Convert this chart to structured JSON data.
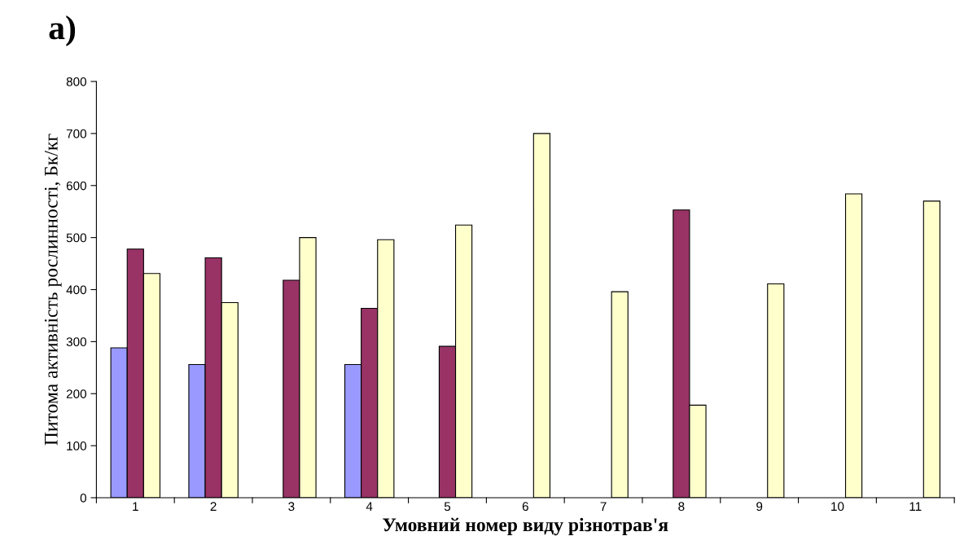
{
  "chart_data": {
    "type": "bar",
    "title": "а)",
    "xlabel": "Умовний номер виду різнотрав'я",
    "ylabel": "Питома активність рослинності, Бк/кг",
    "categories": [
      "1",
      "2",
      "3",
      "4",
      "5",
      "6",
      "7",
      "8",
      "9",
      "10",
      "11"
    ],
    "series": [
      {
        "color": "#9999ff",
        "values": [
          288,
          256,
          null,
          256,
          null,
          null,
          null,
          null,
          null,
          null,
          null
        ]
      },
      {
        "color": "#993366",
        "values": [
          478,
          461,
          418,
          364,
          291,
          null,
          null,
          553,
          null,
          null,
          null
        ]
      },
      {
        "color": "#ffffcc",
        "values": [
          431,
          375,
          500,
          496,
          524,
          700,
          396,
          178,
          411,
          584,
          570
        ]
      }
    ],
    "ylim": [
      0,
      800
    ],
    "yticks": [
      0,
      100,
      200,
      300,
      400,
      500,
      600,
      700,
      800
    ],
    "grid": false,
    "legend": false
  }
}
